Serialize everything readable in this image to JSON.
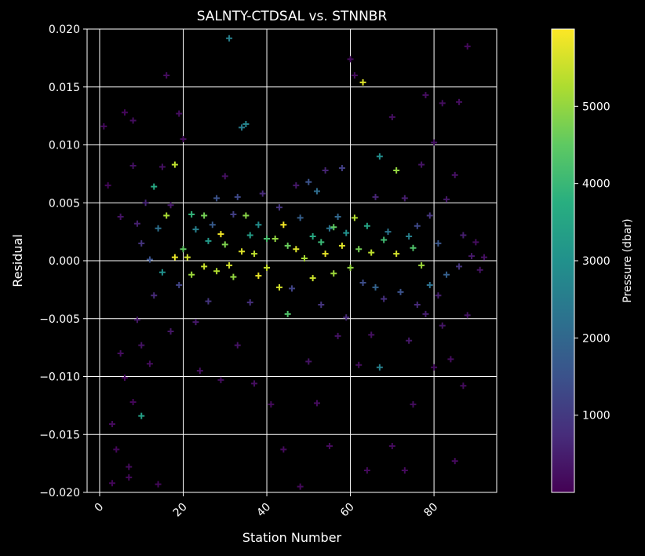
{
  "chart_data": {
    "type": "scatter",
    "title": "SALNTY-CTDSAL vs. STNNBR",
    "xlabel": "Station Number",
    "ylabel": "Residual",
    "xlim": [
      -3,
      95
    ],
    "ylim": [
      -0.02,
      0.02
    ],
    "x_ticks": [
      0,
      20,
      40,
      60,
      80
    ],
    "x_tick_labels": [
      "0",
      "20",
      "40",
      "60",
      "80"
    ],
    "y_ticks": [
      -0.02,
      -0.015,
      -0.01,
      -0.005,
      0.0,
      0.005,
      0.01,
      0.015,
      0.02
    ],
    "y_tick_labels": [
      "−0.020",
      "−0.015",
      "−0.010",
      "−0.005",
      "0.000",
      "0.005",
      "0.010",
      "0.015",
      "0.020"
    ],
    "grid": true,
    "marker": "+",
    "colorbar": {
      "label": "Pressure (dbar)",
      "colormap": "viridis",
      "range": [
        0,
        6000
      ],
      "ticks": [
        1000,
        2000,
        3000,
        4000,
        5000
      ],
      "tick_labels": [
        "1000",
        "2000",
        "3000",
        "4000",
        "5000"
      ]
    },
    "points": [
      [
        1,
        0.0116,
        150
      ],
      [
        2,
        0.0065,
        120
      ],
      [
        3,
        -0.0192,
        90
      ],
      [
        3,
        -0.0141,
        160
      ],
      [
        4,
        -0.0163,
        100
      ],
      [
        5,
        -0.008,
        200
      ],
      [
        5,
        0.0038,
        300
      ],
      [
        6,
        -0.0101,
        140
      ],
      [
        6,
        0.0128,
        110
      ],
      [
        7,
        -0.0187,
        130
      ],
      [
        7,
        -0.0178,
        170
      ],
      [
        8,
        -0.0122,
        90
      ],
      [
        8,
        0.0121,
        210
      ],
      [
        8,
        0.0082,
        260
      ],
      [
        9,
        -0.0051,
        400
      ],
      [
        9,
        0.0032,
        520
      ],
      [
        10,
        -0.0134,
        3400
      ],
      [
        10,
        -0.0073,
        300
      ],
      [
        10,
        0.0015,
        900
      ],
      [
        11,
        0.005,
        600
      ],
      [
        12,
        -0.0089,
        180
      ],
      [
        12,
        0.0001,
        1500
      ],
      [
        13,
        0.0064,
        3600
      ],
      [
        13,
        -0.003,
        700
      ],
      [
        14,
        -0.0193,
        120
      ],
      [
        14,
        0.0028,
        2200
      ],
      [
        15,
        0.0081,
        250
      ],
      [
        15,
        -0.001,
        3000
      ],
      [
        16,
        0.016,
        200
      ],
      [
        16,
        0.0039,
        5200
      ],
      [
        17,
        0.0048,
        400
      ],
      [
        17,
        -0.0061,
        350
      ],
      [
        18,
        0.0083,
        5400
      ],
      [
        18,
        0.0003,
        5800
      ],
      [
        19,
        0.0127,
        210
      ],
      [
        19,
        -0.0021,
        1200
      ],
      [
        20,
        0.0105,
        200
      ],
      [
        20,
        0.001,
        4500
      ],
      [
        21,
        0.0003,
        5600
      ],
      [
        22,
        0.004,
        3900
      ],
      [
        22,
        -0.0012,
        5100
      ],
      [
        23,
        0.0027,
        2600
      ],
      [
        23,
        -0.0053,
        400
      ],
      [
        24,
        -0.0095,
        220
      ],
      [
        25,
        0.0039,
        4700
      ],
      [
        25,
        -0.0005,
        5500
      ],
      [
        26,
        0.0017,
        3200
      ],
      [
        26,
        -0.0035,
        900
      ],
      [
        27,
        0.0031,
        1700
      ],
      [
        28,
        0.0054,
        1500
      ],
      [
        28,
        -0.0009,
        5300
      ],
      [
        29,
        0.0023,
        5900
      ],
      [
        29,
        -0.0103,
        200
      ],
      [
        30,
        0.0073,
        250
      ],
      [
        30,
        0.0014,
        4800
      ],
      [
        31,
        0.0192,
        2600
      ],
      [
        31,
        -0.0004,
        5600
      ],
      [
        32,
        0.004,
        1100
      ],
      [
        32,
        -0.0014,
        5000
      ],
      [
        33,
        0.0055,
        1300
      ],
      [
        33,
        -0.0073,
        300
      ],
      [
        34,
        0.0115,
        2500
      ],
      [
        34,
        0.0008,
        5700
      ],
      [
        35,
        0.0118,
        2700
      ],
      [
        35,
        0.0039,
        4900
      ],
      [
        36,
        0.0022,
        3300
      ],
      [
        36,
        -0.0036,
        800
      ],
      [
        37,
        -0.0106,
        220
      ],
      [
        37,
        0.0006,
        5400
      ],
      [
        38,
        0.0031,
        2900
      ],
      [
        38,
        -0.0013,
        5800
      ],
      [
        39,
        0.0058,
        700
      ],
      [
        40,
        -0.0006,
        5500
      ],
      [
        40,
        0.0019,
        4200
      ],
      [
        41,
        -0.0124,
        150
      ],
      [
        42,
        0.0019,
        5000
      ],
      [
        43,
        -0.0023,
        5600
      ],
      [
        43,
        0.0046,
        900
      ],
      [
        44,
        0.0031,
        5900
      ],
      [
        44,
        -0.0163,
        160
      ],
      [
        45,
        -0.0046,
        4300
      ],
      [
        45,
        0.0013,
        4600
      ],
      [
        46,
        -0.0024,
        1200
      ],
      [
        47,
        0.0065,
        400
      ],
      [
        47,
        0.001,
        5700
      ],
      [
        48,
        -0.0195,
        140
      ],
      [
        48,
        0.0037,
        1800
      ],
      [
        49,
        0.0002,
        5200
      ],
      [
        50,
        0.0068,
        1500
      ],
      [
        50,
        -0.0087,
        300
      ],
      [
        51,
        0.0021,
        3600
      ],
      [
        51,
        -0.0015,
        5500
      ],
      [
        52,
        -0.0123,
        180
      ],
      [
        52,
        0.006,
        2100
      ],
      [
        53,
        0.0016,
        4000
      ],
      [
        53,
        -0.0038,
        900
      ],
      [
        54,
        0.0078,
        600
      ],
      [
        54,
        0.0006,
        5800
      ],
      [
        55,
        -0.016,
        150
      ],
      [
        55,
        0.0028,
        2300
      ],
      [
        56,
        0.0029,
        4500
      ],
      [
        56,
        -0.0011,
        5100
      ],
      [
        57,
        0.0038,
        2000
      ],
      [
        57,
        -0.0065,
        300
      ],
      [
        58,
        0.008,
        1100
      ],
      [
        58,
        0.0013,
        5700
      ],
      [
        59,
        0.0024,
        3000
      ],
      [
        59,
        -0.0049,
        700
      ],
      [
        60,
        0.0174,
        200
      ],
      [
        60,
        -0.0006,
        5000
      ],
      [
        61,
        0.016,
        180
      ],
      [
        61,
        0.0037,
        5300
      ],
      [
        62,
        -0.009,
        200
      ],
      [
        62,
        0.001,
        4700
      ],
      [
        63,
        0.0154,
        5700
      ],
      [
        63,
        -0.0019,
        1400
      ],
      [
        64,
        0.003,
        3500
      ],
      [
        64,
        -0.0181,
        150
      ],
      [
        65,
        0.0007,
        5400
      ],
      [
        65,
        -0.0064,
        250
      ],
      [
        66,
        0.0055,
        600
      ],
      [
        66,
        -0.0023,
        1900
      ],
      [
        67,
        0.009,
        2900
      ],
      [
        67,
        -0.0092,
        2600
      ],
      [
        68,
        0.0018,
        4100
      ],
      [
        68,
        -0.0033,
        800
      ],
      [
        69,
        0.0025,
        2300
      ],
      [
        70,
        0.0124,
        230
      ],
      [
        70,
        -0.016,
        150
      ],
      [
        71,
        0.0078,
        5000
      ],
      [
        71,
        0.0006,
        5600
      ],
      [
        72,
        -0.0027,
        1500
      ],
      [
        73,
        0.0054,
        500
      ],
      [
        73,
        -0.0181,
        160
      ],
      [
        74,
        0.0021,
        2600
      ],
      [
        74,
        -0.0069,
        400
      ],
      [
        75,
        0.0011,
        4300
      ],
      [
        75,
        -0.0124,
        200
      ],
      [
        76,
        0.003,
        1300
      ],
      [
        76,
        -0.0038,
        700
      ],
      [
        77,
        0.0083,
        300
      ],
      [
        77,
        -0.0004,
        5100
      ],
      [
        78,
        0.0143,
        200
      ],
      [
        78,
        -0.0046,
        500
      ],
      [
        79,
        0.0039,
        900
      ],
      [
        79,
        -0.0021,
        2200
      ],
      [
        80,
        -0.0092,
        200
      ],
      [
        80,
        0.0102,
        300
      ],
      [
        81,
        0.0015,
        1600
      ],
      [
        81,
        -0.003,
        500
      ],
      [
        82,
        0.0136,
        220
      ],
      [
        82,
        -0.0056,
        350
      ],
      [
        83,
        0.0053,
        400
      ],
      [
        83,
        -0.0012,
        1800
      ],
      [
        84,
        -0.0085,
        200
      ],
      [
        85,
        0.0074,
        250
      ],
      [
        85,
        -0.0173,
        150
      ],
      [
        86,
        0.0137,
        200
      ],
      [
        86,
        -0.0005,
        900
      ],
      [
        87,
        0.0022,
        500
      ],
      [
        87,
        -0.0108,
        180
      ],
      [
        88,
        0.0185,
        150
      ],
      [
        88,
        -0.0047,
        300
      ],
      [
        89,
        0.0004,
        400
      ],
      [
        90,
        0.0016,
        200
      ],
      [
        91,
        -0.0008,
        300
      ],
      [
        92,
        0.0003,
        250
      ]
    ]
  }
}
